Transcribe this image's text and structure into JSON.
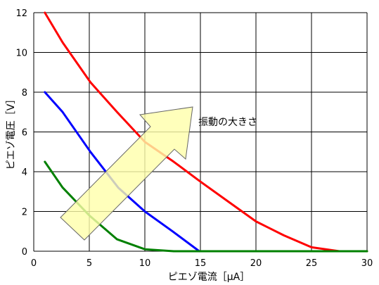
{
  "chart_data": {
    "type": "line",
    "xlabel": "ピエゾ電流［μA］",
    "ylabel": "ピエゾ電圧［V］",
    "xlim": [
      0,
      30
    ],
    "ylim": [
      0,
      12
    ],
    "xticks": [
      0,
      5,
      10,
      15,
      20,
      25,
      30
    ],
    "yticks": [
      0,
      2,
      4,
      6,
      8,
      10,
      12
    ],
    "grid": true,
    "legend": "none",
    "series": [
      {
        "color": "#ff0000",
        "x": [
          1.0,
          2.6,
          5.1,
          7.5,
          10.0,
          12.6,
          15.0,
          17.5,
          20.0,
          22.5,
          25.0,
          27.5,
          30.0
        ],
        "y": [
          12.0,
          10.5,
          8.5,
          7.0,
          5.5,
          4.5,
          3.5,
          2.5,
          1.5,
          0.8,
          0.2,
          0.0,
          0.0
        ]
      },
      {
        "color": "#0000ff",
        "x": [
          1.0,
          2.6,
          5.1,
          7.6,
          10.0,
          12.5,
          14.9
        ],
        "y": [
          8.0,
          7.0,
          5.0,
          3.2,
          2.0,
          1.0,
          0.0
        ]
      },
      {
        "color": "#008000",
        "x": [
          1.0,
          2.6,
          5.0,
          7.5,
          10.0,
          12.6,
          15.0,
          17.5,
          20.0,
          22.5,
          25.0,
          27.5,
          30.0
        ],
        "y": [
          4.5,
          3.2,
          1.8,
          0.6,
          0.1,
          0.0,
          0.0,
          0.0,
          0.0,
          0.0,
          0.0,
          0.0,
          0.0
        ]
      }
    ],
    "annotation": {
      "text": "振動の大きさ",
      "arrow_fill": "#ffffaa",
      "arrow_stroke": "#666666"
    }
  }
}
